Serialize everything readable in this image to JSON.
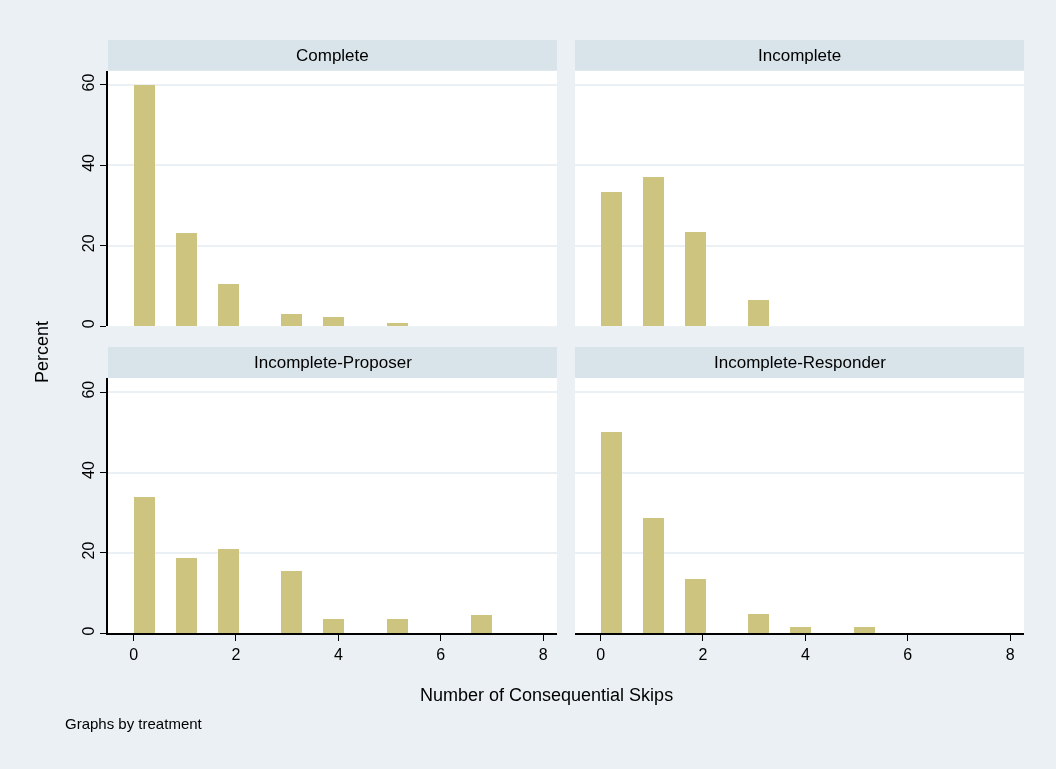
{
  "chart_data": [
    {
      "type": "histogram",
      "title": "Complete",
      "ylabel": "Percent",
      "bins": [
        0,
        0.412,
        0.824,
        1.235,
        1.647,
        2.059,
        2.471,
        2.882,
        3.294,
        3.706,
        4.118,
        4.529,
        4.941,
        5.353,
        5.765,
        6.176,
        6.588,
        7
      ],
      "values": [
        60.1,
        0,
        23.1,
        0,
        10.5,
        0,
        0,
        3.1,
        0,
        2.2,
        0,
        0,
        0.9,
        0,
        0,
        0,
        0
      ],
      "color": "#cdc47f",
      "xlim": [
        -0.5,
        8.27
      ],
      "ylim": [
        0,
        63.5
      ],
      "xticks": [
        0,
        2,
        4,
        6,
        8
      ],
      "yticks": [
        0,
        20,
        40,
        60
      ],
      "grid": "y",
      "tick_labels": "y"
    },
    {
      "type": "histogram",
      "title": "Incomplete",
      "bins": [
        0,
        0.412,
        0.824,
        1.235,
        1.647,
        2.059,
        2.471,
        2.882,
        3.294,
        3.706,
        4.118,
        4.529,
        4.941,
        5.353,
        5.765,
        6.176,
        6.588,
        7
      ],
      "values": [
        33.5,
        0,
        37.1,
        0,
        23.5,
        0,
        0,
        6.6,
        0,
        0,
        0,
        0,
        0,
        0,
        0,
        0,
        0
      ],
      "color": "#cdc47f",
      "xlim": [
        -0.5,
        8.27
      ],
      "ylim": [
        0,
        63.5
      ],
      "xticks": [
        0,
        2,
        4,
        6,
        8
      ],
      "yticks": [
        0,
        20,
        40,
        60
      ],
      "grid": "y",
      "tick_labels": false
    },
    {
      "type": "histogram",
      "title": "Incomplete-Proposer",
      "xlabel": "Number of Consequential Skips",
      "annotations": [
        "Graphs by treatment"
      ],
      "bins": [
        0,
        0.412,
        0.824,
        1.235,
        1.647,
        2.059,
        2.471,
        2.882,
        3.294,
        3.706,
        4.118,
        4.529,
        4.941,
        5.353,
        5.765,
        6.176,
        6.588,
        7
      ],
      "values": [
        34.0,
        0,
        18.8,
        0,
        21.0,
        0,
        0,
        15.4,
        0,
        3.6,
        0,
        0,
        3.6,
        0,
        0,
        0,
        4.5
      ],
      "color": "#cdc47f",
      "xlim": [
        -0.5,
        8.27
      ],
      "ylim": [
        0,
        63.5
      ],
      "xticks": [
        0,
        2,
        4,
        6,
        8
      ],
      "yticks": [
        0,
        20,
        40,
        60
      ],
      "grid": "y"
    },
    {
      "type": "histogram",
      "title": "Incomplete-Responder",
      "bins": [
        0,
        0.412,
        0.824,
        1.235,
        1.647,
        2.059,
        2.471,
        2.882,
        3.294,
        3.706,
        4.118,
        4.529,
        4.941,
        5.353,
        5.765,
        6.176,
        6.588,
        7
      ],
      "values": [
        50.1,
        0,
        28.8,
        0,
        13.6,
        0,
        0,
        4.9,
        0,
        1.5,
        0,
        0,
        1.5,
        0,
        0,
        0,
        0
      ],
      "color": "#cdc47f",
      "xlim": [
        -0.5,
        8.27
      ],
      "ylim": [
        0,
        63.5
      ],
      "xticks": [
        0,
        2,
        4,
        6,
        8
      ],
      "yticks": [
        0,
        20,
        40,
        60
      ],
      "grid": "y",
      "tick_labels": "x"
    }
  ]
}
